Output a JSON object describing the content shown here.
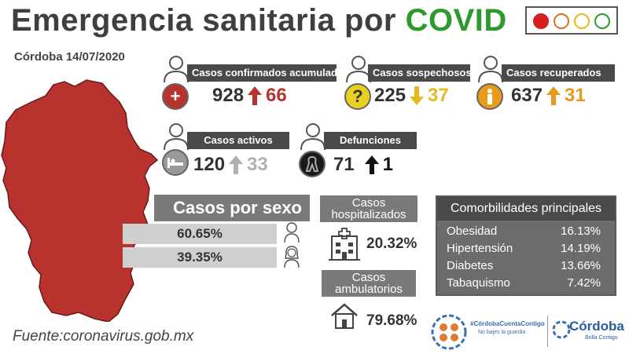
{
  "header": {
    "title_main": "Emergencia sanitaria por ",
    "title_accent": "COVID",
    "date_line": "Córdoba 14/07/2020"
  },
  "stats": {
    "confirmados": {
      "label": "Casos confirmados acumulados",
      "value": "928",
      "change": "66",
      "trend": "up",
      "trend_color": "#b8322e"
    },
    "sospechosos": {
      "label": "Casos sospechosos",
      "value": "225",
      "change": "37",
      "trend": "down",
      "trend_color": "#e8b820"
    },
    "recuperados": {
      "label": "Casos recuperados",
      "value": "637",
      "change": "31",
      "trend": "up",
      "trend_color": "#e89a1a"
    },
    "activos": {
      "label": "Casos activos",
      "value": "120",
      "change": "33",
      "trend": "up",
      "trend_color": "#b0b0b0"
    },
    "defunciones": {
      "label": "Defunciones",
      "value": "71",
      "change": "1",
      "trend": "up",
      "trend_color": "#111111"
    }
  },
  "sexo": {
    "title": "Casos por sexo",
    "hombres_pct": "60.65%",
    "mujeres_pct": "39.35%"
  },
  "hospital": {
    "hosp_label_1": "Casos",
    "hosp_label_2": "hospitalizados",
    "hosp_pct": "20.32%",
    "amb_label_1": "Casos",
    "amb_label_2": "ambulatorios",
    "amb_pct": "79.68%"
  },
  "comorbilidades": {
    "title": "Comorbilidades principales",
    "rows": [
      {
        "name": "Obesidad",
        "pct": "16.13%"
      },
      {
        "name": "Hipertensión",
        "pct": "14.19%"
      },
      {
        "name": "Diabetes",
        "pct": "13.66%"
      },
      {
        "name": "Tabaquismo",
        "pct": "7.42%"
      }
    ]
  },
  "footer": {
    "source": "Fuente:coronavirus.gob.mx",
    "hashtag": "#CórdobaCuentaContigo",
    "slogan": "No bajes la guardia",
    "brand": "Córdoba",
    "brand_sub": "Brilla Contigo"
  },
  "colors": {
    "map_red": "#b8322e",
    "traffic_light": [
      "#d42020",
      "#ffffff",
      "#ffffff",
      "#ffffff"
    ]
  },
  "icons": {
    "confirmados": "plus-icon",
    "sospechosos": "question-icon",
    "recuperados": "recovered-person-icon",
    "activos": "bed-icon",
    "defunciones": "mourning-ribbon-icon"
  }
}
